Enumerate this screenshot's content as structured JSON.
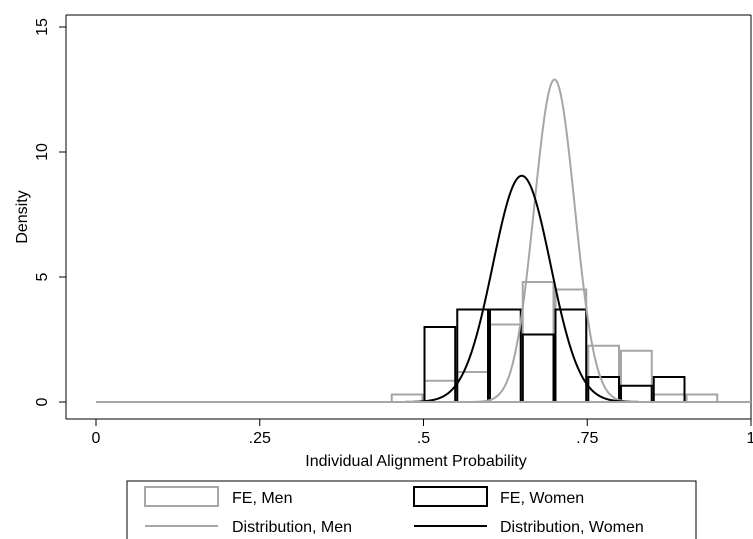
{
  "chart_data": {
    "type": "bar",
    "xlabel": "Individual Alignment Probability",
    "ylabel": "Density",
    "xlim": [
      0,
      1
    ],
    "ylim": [
      0,
      15
    ],
    "x_ticks": [
      {
        "value": 0,
        "label": "0"
      },
      {
        "value": 0.25,
        "label": ".25"
      },
      {
        "value": 0.5,
        "label": ".5"
      },
      {
        "value": 0.75,
        "label": ".75"
      },
      {
        "value": 1,
        "label": "1"
      }
    ],
    "y_ticks": [
      {
        "value": 0,
        "label": "0"
      },
      {
        "value": 5,
        "label": "5"
      },
      {
        "value": 10,
        "label": "10"
      },
      {
        "value": 15,
        "label": "15"
      }
    ],
    "grid": false,
    "legend_position": "bottom",
    "histograms": [
      {
        "name": "FE, Men",
        "color": "#a6a6a6",
        "bin_width": 0.05,
        "bins": [
          {
            "start": 0.45,
            "density": 0.3
          },
          {
            "start": 0.5,
            "density": 0.85
          },
          {
            "start": 0.55,
            "density": 1.2
          },
          {
            "start": 0.6,
            "density": 3.1
          },
          {
            "start": 0.65,
            "density": 4.8
          },
          {
            "start": 0.7,
            "density": 4.5
          },
          {
            "start": 0.75,
            "density": 2.25
          },
          {
            "start": 0.8,
            "density": 2.05
          },
          {
            "start": 0.85,
            "density": 0.3
          },
          {
            "start": 0.9,
            "density": 0.3
          }
        ]
      },
      {
        "name": "FE, Women",
        "color": "#000000",
        "bin_width": 0.05,
        "bins": [
          {
            "start": 0.5,
            "density": 3.0
          },
          {
            "start": 0.55,
            "density": 3.7
          },
          {
            "start": 0.6,
            "density": 3.7
          },
          {
            "start": 0.65,
            "density": 2.7
          },
          {
            "start": 0.7,
            "density": 3.7
          },
          {
            "start": 0.75,
            "density": 1.0
          },
          {
            "start": 0.8,
            "density": 0.65
          },
          {
            "start": 0.85,
            "density": 1.0
          }
        ]
      }
    ],
    "series": [
      {
        "name": "Distribution, Men",
        "type": "normal",
        "mean": 0.7,
        "peak_density": 12.9,
        "color": "#a6a6a6"
      },
      {
        "name": "Distribution, Women",
        "type": "normal",
        "mean": 0.65,
        "peak_density": 9.05,
        "color": "#000000"
      }
    ],
    "legend": [
      {
        "label": "FE, Men",
        "kind": "box",
        "color": "#a6a6a6"
      },
      {
        "label": "FE, Women",
        "kind": "box",
        "color": "#000000"
      },
      {
        "label": "Distribution, Men",
        "kind": "line",
        "color": "#a6a6a6"
      },
      {
        "label": "Distribution, Women",
        "kind": "line",
        "color": "#000000"
      }
    ]
  }
}
